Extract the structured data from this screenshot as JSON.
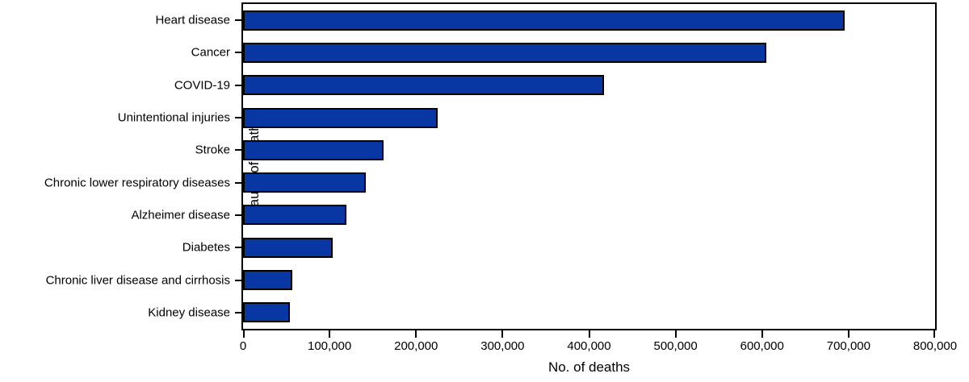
{
  "chart_data": {
    "type": "bar",
    "orientation": "horizontal",
    "categories": [
      "Heart disease",
      "Cancer",
      "COVID-19",
      "Unintentional injuries",
      "Stroke",
      "Chronic lower respiratory diseases",
      "Alzheimer disease",
      "Diabetes",
      "Chronic liver disease and cirrhosis",
      "Kidney disease"
    ],
    "values": [
      695547,
      605213,
      416893,
      224935,
      162890,
      142342,
      119399,
      103294,
      56585,
      54358
    ],
    "xlabel": "No. of deaths",
    "ylabel": "Cause of death",
    "xlim": [
      0,
      800000
    ],
    "xticks": [
      0,
      100000,
      200000,
      300000,
      400000,
      500000,
      600000,
      700000,
      800000
    ],
    "xtick_labels": [
      "0",
      "100,000",
      "200,000",
      "300,000",
      "400,000",
      "500,000",
      "600,000",
      "700,000",
      "800,000"
    ],
    "bar_color": "#0836A2",
    "bar_border_color": "#000000",
    "axis_color": "#000000",
    "grid": false,
    "legend": null,
    "title": ""
  }
}
